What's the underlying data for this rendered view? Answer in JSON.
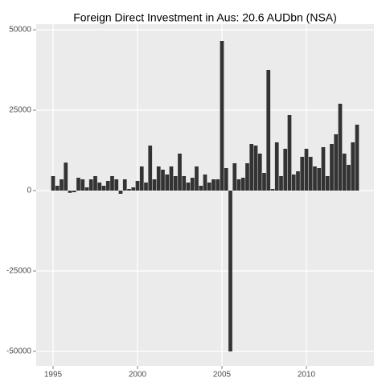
{
  "chart_data": {
    "type": "bar",
    "title": "Foreign Direct Investment in Aus: 20.6 AUDbn (NSA)",
    "x": [
      1995,
      1995.25,
      1995.5,
      1995.75,
      1996,
      1996.25,
      1996.5,
      1996.75,
      1997,
      1997.25,
      1997.5,
      1997.75,
      1998,
      1998.25,
      1998.5,
      1998.75,
      1999,
      1999.25,
      1999.5,
      1999.75,
      2000,
      2000.25,
      2000.5,
      2000.75,
      2001,
      2001.25,
      2001.5,
      2001.75,
      2002,
      2002.25,
      2002.5,
      2002.75,
      2003,
      2003.25,
      2003.5,
      2003.75,
      2004,
      2004.25,
      2004.5,
      2004.75,
      2005,
      2005.25,
      2005.5,
      2005.75,
      2006,
      2006.25,
      2006.5,
      2006.75,
      2007,
      2007.25,
      2007.5,
      2007.75,
      2008,
      2008.25,
      2008.5,
      2008.75,
      2009,
      2009.25,
      2009.5,
      2009.75,
      2010,
      2010.25,
      2010.5,
      2010.75,
      2011,
      2011.25,
      2011.5,
      2011.75,
      2012,
      2012.25,
      2012.5,
      2012.75,
      2013
    ],
    "values": [
      4500,
      1500,
      3500,
      8700,
      -700,
      -500,
      4000,
      3500,
      1000,
      3500,
      4500,
      2500,
      1500,
      3000,
      4500,
      3500,
      -1000,
      3500,
      500,
      1000,
      3000,
      7500,
      2500,
      14000,
      3500,
      7500,
      6500,
      5000,
      7500,
      4500,
      11500,
      4500,
      2500,
      4000,
      7500,
      1500,
      5000,
      2500,
      3500,
      3500,
      46500,
      7000,
      -50000,
      8500,
      3500,
      4000,
      8500,
      14500,
      14000,
      11500,
      5500,
      37500,
      500,
      15000,
      4500,
      13000,
      23500,
      5000,
      6000,
      10500,
      13000,
      10500,
      7500,
      7000,
      13500,
      4500,
      14500,
      17500,
      27000,
      11500,
      8000,
      15000,
      20500
    ],
    "color": "#333333",
    "xlim": [
      1994,
      2014
    ],
    "xticks": [
      1995,
      2000,
      2005,
      2010
    ],
    "ylim": [
      -54500,
      51750
    ],
    "yticks": [
      -50000,
      -25000,
      0,
      25000,
      50000
    ],
    "grid": true
  }
}
